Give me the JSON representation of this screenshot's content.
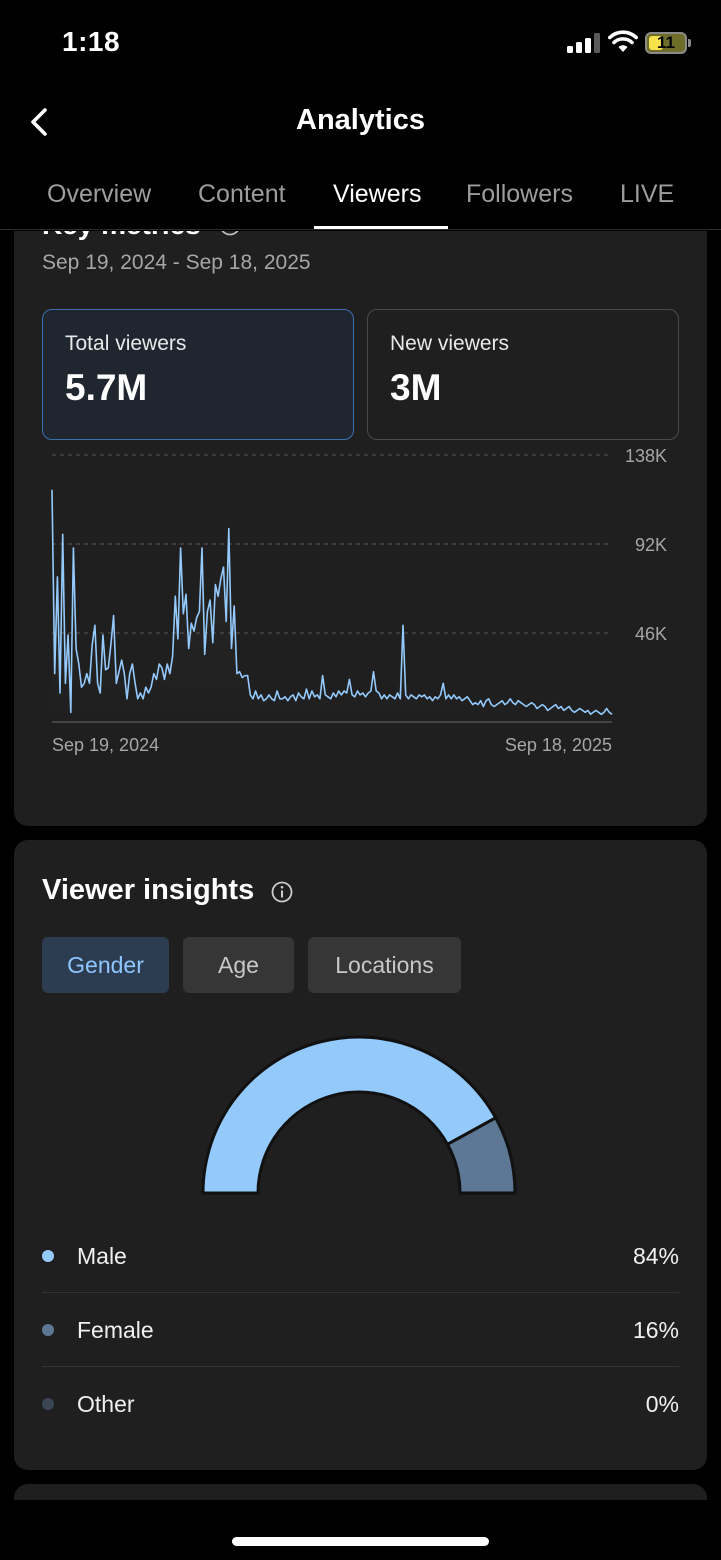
{
  "status_bar": {
    "time": "1:18",
    "battery": "11"
  },
  "header": {
    "title": "Analytics"
  },
  "tabs": [
    {
      "label": "Overview",
      "active": false
    },
    {
      "label": "Content",
      "active": false
    },
    {
      "label": "Viewers",
      "active": true
    },
    {
      "label": "Followers",
      "active": false
    },
    {
      "label": "LIVE",
      "active": false
    }
  ],
  "key_metrics": {
    "title": "Key metrics",
    "date_range": "Sep 19, 2024 - Sep 18, 2025",
    "cards": [
      {
        "label": "Total viewers",
        "value": "5.7M",
        "selected": true
      },
      {
        "label": "New viewers",
        "value": "3M",
        "selected": false
      }
    ]
  },
  "chart_data": {
    "type": "line",
    "series": [
      {
        "values": [
          120,
          25,
          75,
          15,
          97,
          20,
          45,
          5,
          90,
          38,
          30,
          18,
          20,
          25,
          20,
          40,
          50,
          20,
          15,
          45,
          27,
          28,
          40,
          55,
          20,
          26,
          32,
          25,
          12,
          25,
          30,
          20,
          12,
          15,
          12,
          18,
          15,
          18,
          25,
          22,
          30,
          28,
          22,
          30,
          25,
          34,
          65,
          43,
          90,
          56,
          66,
          38,
          51,
          47,
          54,
          57,
          90,
          35,
          57,
          63,
          41,
          71,
          65,
          74,
          80,
          52,
          100,
          38,
          60,
          25,
          26,
          23,
          24,
          24,
          14,
          12,
          16,
          12,
          14,
          11,
          12,
          14,
          12,
          11,
          16,
          12,
          12,
          13,
          11,
          13,
          14,
          11,
          15,
          13,
          12,
          17,
          12,
          16,
          13,
          14,
          12,
          24,
          14,
          13,
          12,
          15,
          13,
          16,
          14,
          16,
          15,
          22,
          14,
          13,
          16,
          14,
          15,
          13,
          15,
          16,
          26,
          16,
          15,
          12,
          14,
          12,
          14,
          13,
          12,
          15,
          12,
          50,
          14,
          12,
          14,
          13,
          12,
          14,
          13,
          14,
          12,
          13,
          11,
          13,
          12,
          14,
          20,
          12,
          14,
          12,
          14,
          12,
          13,
          11,
          12,
          13,
          11,
          9,
          10,
          9,
          11,
          8,
          11,
          12,
          9,
          8,
          9,
          10,
          11,
          9,
          10,
          12,
          10,
          9,
          11,
          10,
          9,
          8,
          9,
          10,
          9,
          7,
          8,
          9,
          8,
          6,
          7,
          8,
          9,
          7,
          8,
          6,
          7,
          8,
          6,
          5,
          6,
          7,
          6,
          5,
          6,
          4,
          5,
          6,
          5,
          4,
          5,
          7,
          5,
          4
        ]
      }
    ],
    "x_tick_labels": [
      "Sep 19, 2024",
      "Sep 18, 2025"
    ],
    "y_tick_labels": [
      "138K",
      "92K",
      "46K"
    ],
    "ylim": [
      0,
      138
    ],
    "grid": true
  },
  "viewer_insights": {
    "title": "Viewer insights",
    "tabs": [
      {
        "label": "Gender",
        "active": true
      },
      {
        "label": "Age",
        "active": false
      },
      {
        "label": "Locations",
        "active": false
      }
    ],
    "gender": [
      {
        "label": "Male",
        "value": "84%",
        "fraction": 0.84,
        "color": "#94c9fb"
      },
      {
        "label": "Female",
        "value": "16%",
        "fraction": 0.16,
        "color": "#5c7895"
      },
      {
        "label": "Other",
        "value": "0%",
        "fraction": 0.0,
        "color": "#3a4556"
      }
    ]
  }
}
